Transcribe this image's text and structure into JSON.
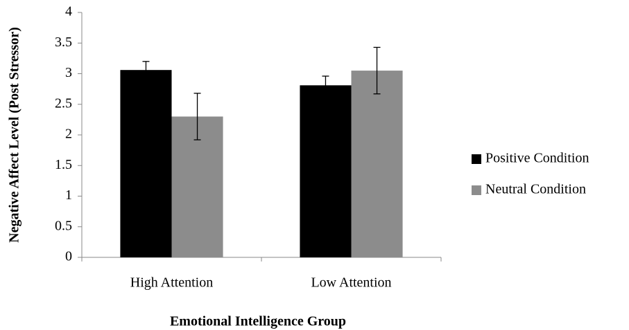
{
  "chart_data": {
    "type": "bar",
    "x_label": "Emotional Intelligence Group",
    "y_label": "Negative Affect Level (Post Stressor)",
    "categories": [
      "High Attention",
      "Low Attention"
    ],
    "series": [
      {
        "name": "Positive Condition",
        "color": "#000000",
        "values": [
          3.06,
          2.81
        ],
        "errors": [
          0.14,
          0.15
        ]
      },
      {
        "name": "Neutral Condition",
        "color": "#8c8c8c",
        "values": [
          2.3,
          3.05
        ],
        "errors": [
          0.38,
          0.38
        ]
      }
    ],
    "ylim": [
      0,
      4
    ],
    "yticks": [
      0,
      0.5,
      1,
      1.5,
      2,
      2.5,
      3,
      3.5,
      4
    ],
    "grid": false,
    "legend": "right"
  }
}
